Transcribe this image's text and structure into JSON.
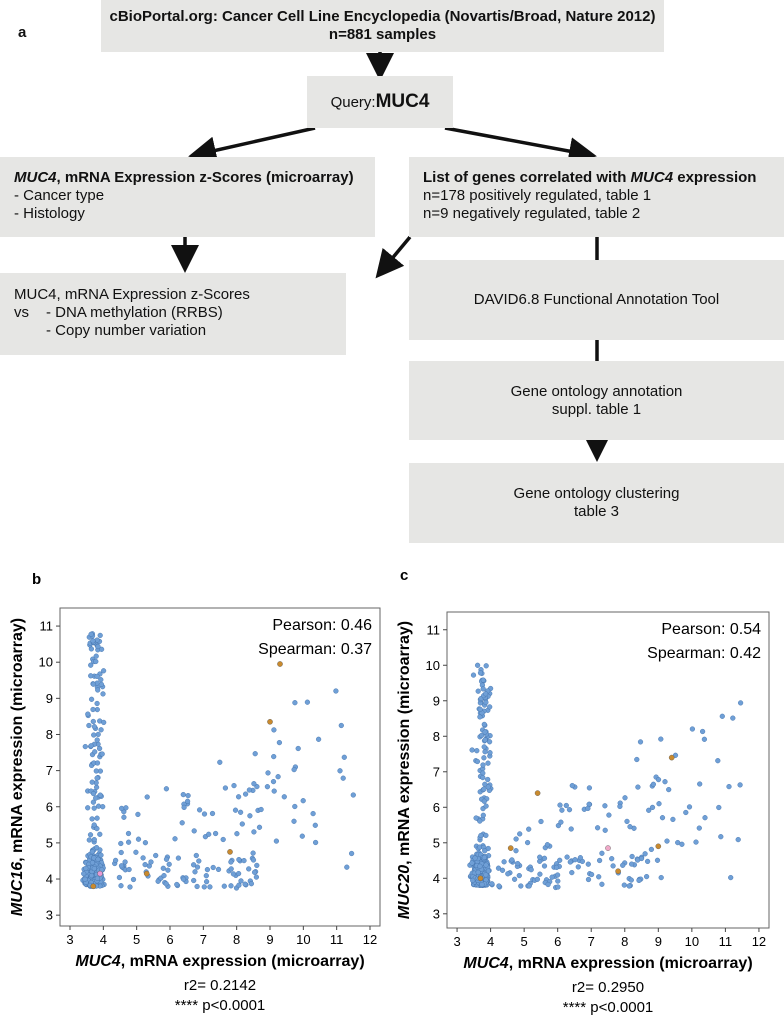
{
  "panel_a": {
    "letter": "a",
    "source_box": {
      "line1": "cBioPortal.org: Cancer Cell Line Encyclopedia (Novartis/Broad, Nature 2012)",
      "line2": "n=881 samples"
    },
    "query_box": {
      "prefix": "Query: ",
      "gene": "MUC4"
    },
    "expr_box": {
      "gene": "MUC4",
      "title_rest": ", mRNA Expression z-Scores (microarray)",
      "items": [
        "- Cancer type",
        "- Histology"
      ]
    },
    "corr_box": {
      "title_pre": "List of genes correlated with ",
      "gene": "MUC4",
      "title_post": " expression",
      "items": [
        "n=178 positively regulated, table 1",
        "n=9 negatively regulated, table 2"
      ]
    },
    "compare_box": {
      "line1": "MUC4, mRNA Expression z-Scores",
      "vs": "vs",
      "items": [
        "- DNA methylation (RRBS)",
        "- Copy number variation"
      ]
    },
    "david_box": {
      "label": "DAVID6.8 Functional Annotation Tool"
    },
    "go_annot_box": {
      "line1": "Gene ontology annotation",
      "line2": "suppl. table 1"
    },
    "go_cluster_box": {
      "line1": "Gene ontology  clustering",
      "line2": "table 3"
    }
  },
  "chart_data": [
    {
      "type": "scatter",
      "panel": "b",
      "x_gene": "MUC4",
      "xlabel_rest": ", mRNA expression (microarray)",
      "y_gene": "MUC16",
      "ylabel_rest": ", mRNA expression (microarray)",
      "xlim": [
        2.7,
        12.3
      ],
      "ylim": [
        2.7,
        11.5
      ],
      "xticks": [
        "3",
        "4",
        "5",
        "6",
        "7",
        "8",
        "9",
        "10",
        "11",
        "12"
      ],
      "yticks": [
        "3",
        "4",
        "5",
        "6",
        "7",
        "8",
        "9",
        "10",
        "11"
      ],
      "pearson": "Pearson: 0.46",
      "spearman": "Spearman: 0.37",
      "r2": "r2= 0.2142",
      "pvalue": "**** p<0.0001",
      "highlight_points": [
        {
          "x": 9.3,
          "y": 9.95,
          "color": "#c98a2e"
        },
        {
          "x": 9.0,
          "y": 8.35,
          "color": "#c98a2e"
        },
        {
          "x": 7.8,
          "y": 4.75,
          "color": "#c98a2e"
        },
        {
          "x": 5.3,
          "y": 4.15,
          "color": "#c98a2e"
        },
        {
          "x": 3.7,
          "y": 3.8,
          "color": "#c98a2e"
        },
        {
          "x": 3.9,
          "y": 4.15,
          "color": "#e79ad6"
        }
      ]
    },
    {
      "type": "scatter",
      "panel": "c",
      "x_gene": "MUC4",
      "xlabel_rest": ", mRNA expression (microarray)",
      "y_gene": "MUC20",
      "ylabel_rest": ", mRNA expression (microarray)",
      "xlim": [
        2.7,
        12.3
      ],
      "ylim": [
        2.6,
        11.5
      ],
      "xticks": [
        "3",
        "4",
        "5",
        "6",
        "7",
        "8",
        "9",
        "10",
        "11",
        "12"
      ],
      "yticks": [
        "3",
        "4",
        "5",
        "6",
        "7",
        "8",
        "9",
        "10",
        "11"
      ],
      "pearson": "Pearson: 0.54",
      "spearman": "Spearman: 0.42",
      "r2": "r2= 0.2950",
      "pvalue": "**** p<0.0001",
      "highlight_points": [
        {
          "x": 9.4,
          "y": 7.4,
          "color": "#c98a2e"
        },
        {
          "x": 9.0,
          "y": 4.9,
          "color": "#c98a2e"
        },
        {
          "x": 7.8,
          "y": 4.2,
          "color": "#c98a2e"
        },
        {
          "x": 5.4,
          "y": 6.4,
          "color": "#c98a2e"
        },
        {
          "x": 4.6,
          "y": 4.85,
          "color": "#c98a2e"
        },
        {
          "x": 3.7,
          "y": 4.0,
          "color": "#c98a2e"
        },
        {
          "x": 7.5,
          "y": 4.85,
          "color": "#f0a8c8"
        }
      ]
    }
  ]
}
